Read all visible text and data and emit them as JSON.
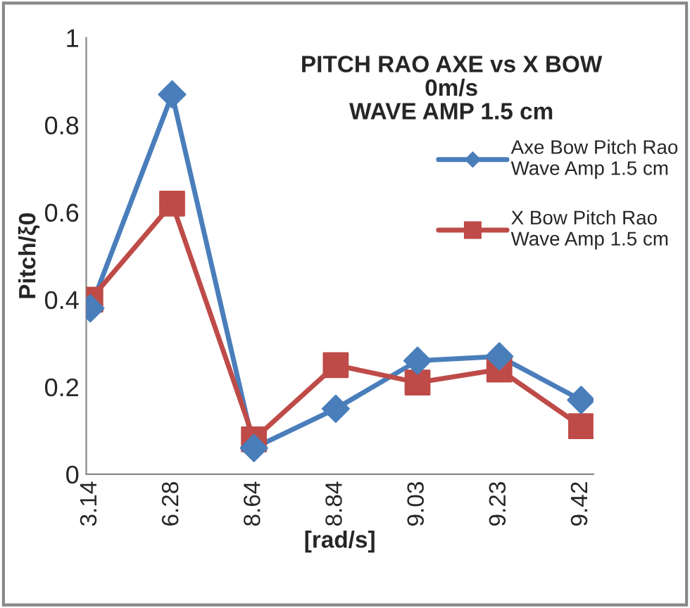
{
  "chart_data": {
    "type": "line",
    "title": "PITCH RAO AXE vs X BOW\n0m/s\nWAVE AMP 1.5 cm",
    "xlabel": "[rad/s]",
    "ylabel": "Pitch/ξ0",
    "categories": [
      "3.14",
      "6.28",
      "8.64",
      "8.84",
      "9.03",
      "9.23",
      "9.42"
    ],
    "series": [
      {
        "name": "Axe Bow Pitch Rao\nWave Amp 1.5 cm",
        "color": "#4a7ebb",
        "marker": "diamond",
        "values": [
          0.38,
          0.87,
          0.06,
          0.15,
          0.26,
          0.27,
          0.17
        ]
      },
      {
        "name": "X Bow Pitch Rao\nWave Amp 1.5 cm",
        "color": "#be4b48",
        "marker": "square",
        "values": [
          0.4,
          0.62,
          0.08,
          0.25,
          0.21,
          0.24,
          0.11
        ]
      }
    ],
    "ylim": [
      0,
      1
    ],
    "yticks": [
      0,
      0.2,
      0.4,
      0.6,
      0.8,
      1
    ],
    "grid": false,
    "legend": "right",
    "line_style": "solid"
  }
}
